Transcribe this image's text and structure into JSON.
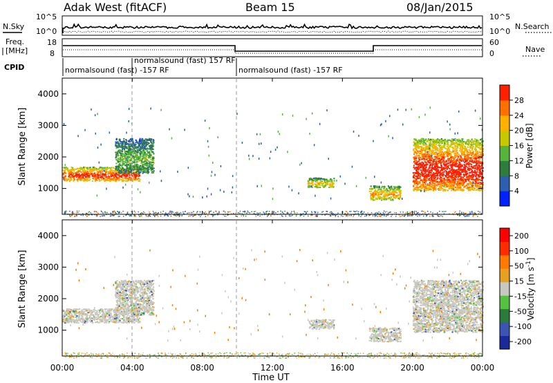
{
  "header": {
    "station": "Adak West (fitACF)",
    "beam": "Beam 15",
    "date": "08/Jan/2015"
  },
  "top_panels": {
    "nsky_label": "N.Sky",
    "nsearch_label": "N.Search",
    "nsky_ticks": [
      "10^5",
      "10^0"
    ],
    "nsearch_ticks": [
      "10^5",
      "10^0"
    ],
    "freq_label_1": "Freq.",
    "freq_label_2": "[MHz]",
    "freq_ticks": [
      "18",
      "8"
    ],
    "nave_label": "Nave",
    "nave_ticks": [
      "60",
      "0"
    ],
    "cpid_label": "CPID",
    "cpid_segments": [
      {
        "label": "normalsound (fast) -157 RF",
        "start_h": 0,
        "end_h": 4
      },
      {
        "label": "normalsound (fast) 157 RF",
        "start_h": 4,
        "end_h": 10
      },
      {
        "label": "normalsound (fast) -157 RF",
        "start_h": 10,
        "end_h": 24
      }
    ]
  },
  "axes": {
    "xlabel": "Time UT",
    "x_ticks": [
      "00:00",
      "04:00",
      "08:00",
      "12:00",
      "16:00",
      "20:00",
      "00:00"
    ],
    "ylabel": "Slant Range [km]",
    "y_ticks": [
      "1000",
      "2000",
      "3000",
      "4000"
    ]
  },
  "colorbars": {
    "power": {
      "label": "Power [dB]",
      "ticks": [
        "4",
        "8",
        "12",
        "16",
        "20",
        "24",
        "28"
      ],
      "colors": [
        "#0022ff",
        "#2c5fb0",
        "#2e7d3c",
        "#56b33c",
        "#c8c800",
        "#ffb000",
        "#ff7000",
        "#ff2000"
      ]
    },
    "velocity": {
      "label": "Velocity [m s",
      "label_sup": "-1",
      "label_end": "]",
      "ticks": [
        "200",
        "100",
        "50",
        "15",
        "-15",
        "-50",
        "-100",
        "-200"
      ],
      "colors": [
        "#1a2a9a",
        "#3c55b4",
        "#2b7b3a",
        "#56c040",
        "#c8c8c0",
        "#e8a020",
        "#ff7a00",
        "#ff2a00",
        "#ff0000"
      ]
    }
  },
  "chart_data": [
    {
      "type": "heatmap",
      "title": "Power",
      "xlabel": "Time UT",
      "ylabel": "Slant Range [km]",
      "xlim": [
        0,
        24
      ],
      "ylim": [
        180,
        4500
      ],
      "zlim": [
        0,
        30
      ],
      "series": [
        {
          "name": "Power [dB]",
          "features": [
            {
              "t0": 0.0,
              "t1": 4.4,
              "r0": 1250,
              "r1": 1700,
              "z": 26
            },
            {
              "t0": 3.0,
              "t1": 5.2,
              "r0": 1500,
              "r1": 2600,
              "z": 12
            },
            {
              "t0": 14.0,
              "t1": 15.5,
              "r0": 1050,
              "r1": 1350,
              "z": 18
            },
            {
              "t0": 17.5,
              "t1": 19.3,
              "r0": 650,
              "r1": 1100,
              "z": 20
            },
            {
              "t0": 20.0,
              "t1": 24.0,
              "r0": 950,
              "r1": 2600,
              "z": 28
            }
          ]
        }
      ]
    },
    {
      "type": "heatmap",
      "title": "Velocity",
      "xlabel": "Time UT",
      "ylabel": "Slant Range [km]",
      "xlim": [
        0,
        24
      ],
      "ylim": [
        180,
        4500
      ],
      "zlim": [
        -250,
        250
      ],
      "series": [
        {
          "name": "Velocity [m s-1]",
          "features": [
            {
              "t0": 0.0,
              "t1": 4.4,
              "r0": 1250,
              "r1": 1700,
              "z": 0
            },
            {
              "t0": 3.0,
              "t1": 5.2,
              "r0": 1500,
              "r1": 2600,
              "z": 0
            },
            {
              "t0": 14.0,
              "t1": 15.5,
              "r0": 1050,
              "r1": 1350,
              "z": 0
            },
            {
              "t0": 17.5,
              "t1": 19.3,
              "r0": 650,
              "r1": 1100,
              "z": 0
            },
            {
              "t0": 20.0,
              "t1": 24.0,
              "r0": 950,
              "r1": 2600,
              "z": 0
            }
          ]
        }
      ]
    }
  ]
}
